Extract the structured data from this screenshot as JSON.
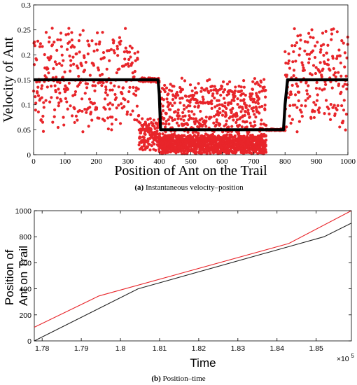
{
  "chart_data": [
    {
      "type": "scatter",
      "xlabel": "Position of Ant on the Trail",
      "ylabel": "Velocity of Ant",
      "xlim": [
        0,
        1000
      ],
      "ylim": [
        0,
        0.3
      ],
      "xticks": [
        "0",
        "100",
        "200",
        "300",
        "400",
        "500",
        "600",
        "700",
        "800",
        "900",
        "1000"
      ],
      "yticks": [
        "0",
        "0.05",
        "0.1",
        "0.15",
        "0.2",
        "0.25",
        "0.3"
      ],
      "grid": false,
      "caption_tag": "(a)",
      "caption_text": "Instantaneous velocity–position",
      "series": [
        {
          "color": "#e8252a",
          "style": "dots",
          "segments": [
            {
              "x": [
                0,
                335
              ],
              "center": 0.15,
              "spread": 0.105,
              "step": 1.0
            },
            {
              "x": [
                335,
                400
              ],
              "center": 0.15,
              "spread": 0.005,
              "step": 1.0
            },
            {
              "x": [
                335,
                400
              ],
              "center": 0.04,
              "spread": 0.035,
              "step": 0.5
            },
            {
              "x": [
                400,
                740
              ],
              "center": 0.08,
              "spread": 0.075,
              "step": 0.6
            },
            {
              "x": [
                400,
                740
              ],
              "center": 0.02,
              "spread": 0.02,
              "step": 0.35
            },
            {
              "x": [
                740,
                800
              ],
              "center": 0.05,
              "spread": 0.002,
              "step": 1.0
            },
            {
              "x": [
                800,
                1000
              ],
              "center": 0.155,
              "spread": 0.11,
              "step": 1.0
            }
          ]
        },
        {
          "color": "#000000",
          "style": "thick-line",
          "x": [
            0,
            396,
            400,
            404,
            795,
            800,
            808,
            1000
          ],
          "y": [
            0.15,
            0.15,
            0.12,
            0.05,
            0.05,
            0.1,
            0.15,
            0.15
          ]
        }
      ]
    },
    {
      "type": "line",
      "xlabel": "Time",
      "ylabel": "Position of Ant on Trail",
      "xlim": [
        1.778,
        1.859
      ],
      "ylim": [
        0,
        1000
      ],
      "xticks": [
        "1.78",
        "1.79",
        "1.8",
        "1.81",
        "1.82",
        "1.83",
        "1.84",
        "1.85"
      ],
      "yticks": [
        "0",
        "200",
        "400",
        "600",
        "800",
        "1000"
      ],
      "x_exponent": "×10",
      "x_exponent_power": "5",
      "grid": false,
      "caption_tag": "(b)",
      "caption_text": "Position–time",
      "series": [
        {
          "color": "#e8252a",
          "x": [
            1.778,
            1.7945,
            1.843,
            1.859
          ],
          "y": [
            105,
            345,
            748,
            1000
          ]
        },
        {
          "color": "#222222",
          "x": [
            1.778,
            1.8045,
            1.8425,
            1.852,
            1.859
          ],
          "y": [
            0,
            400,
            720,
            800,
            905
          ]
        }
      ]
    }
  ]
}
